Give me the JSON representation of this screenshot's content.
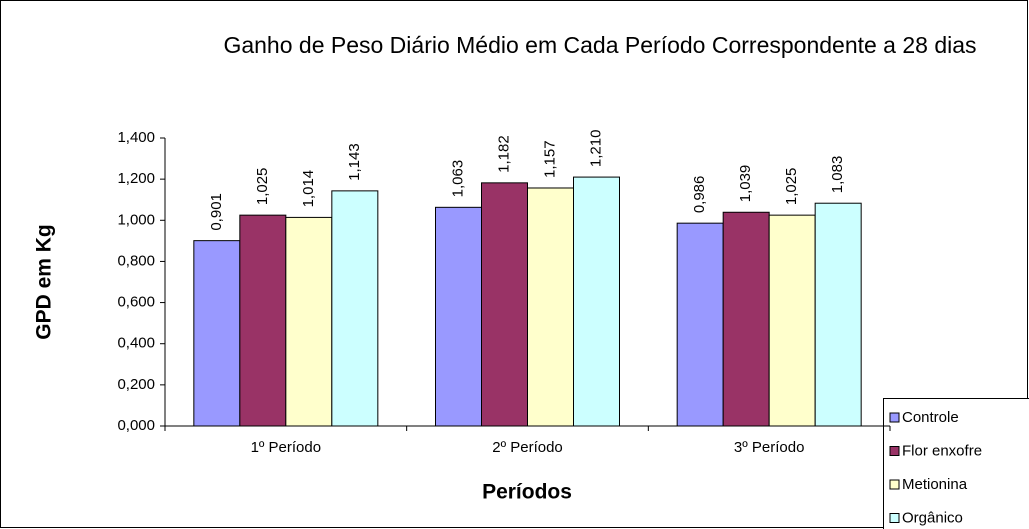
{
  "chart_data": {
    "type": "bar",
    "title": "Ganho de Peso Diário Médio em Cada Período Correspondente a 28 dias",
    "x_label": "Períodos",
    "y_label": "GPD em Kg",
    "categories": [
      "1º Período",
      "2º Período",
      "3º Período"
    ],
    "series": [
      {
        "name": "Controle",
        "color": "#9999ff",
        "values": [
          0.901,
          1.063,
          0.986
        ],
        "value_labels": [
          "0,901",
          "1,063",
          "0,986"
        ]
      },
      {
        "name": "Flor enxofre",
        "color": "#993366",
        "values": [
          1.025,
          1.182,
          1.039
        ],
        "value_labels": [
          "1,025",
          "1,182",
          "1,039"
        ]
      },
      {
        "name": "Metionina",
        "color": "#ffffcc",
        "values": [
          1.014,
          1.157,
          1.025
        ],
        "value_labels": [
          "1,014",
          "1,157",
          "1,025"
        ]
      },
      {
        "name": "Orgânico",
        "color": "#ccffff",
        "values": [
          1.143,
          1.21,
          1.083
        ],
        "value_labels": [
          "1,143",
          "1,210",
          "1,083"
        ]
      }
    ],
    "ylim": [
      0,
      1.4
    ],
    "yticks": [
      {
        "value": 0,
        "label": "0,000"
      },
      {
        "value": 0.2,
        "label": "0,200"
      },
      {
        "value": 0.4,
        "label": "0,400"
      },
      {
        "value": 0.6,
        "label": "0,600"
      },
      {
        "value": 0.8,
        "label": "0,800"
      },
      {
        "value": 1.0,
        "label": "1,000"
      },
      {
        "value": 1.2,
        "label": "1,200"
      },
      {
        "value": 1.4,
        "label": "1,400"
      }
    ],
    "grid": false,
    "legend": "bottom-right"
  }
}
